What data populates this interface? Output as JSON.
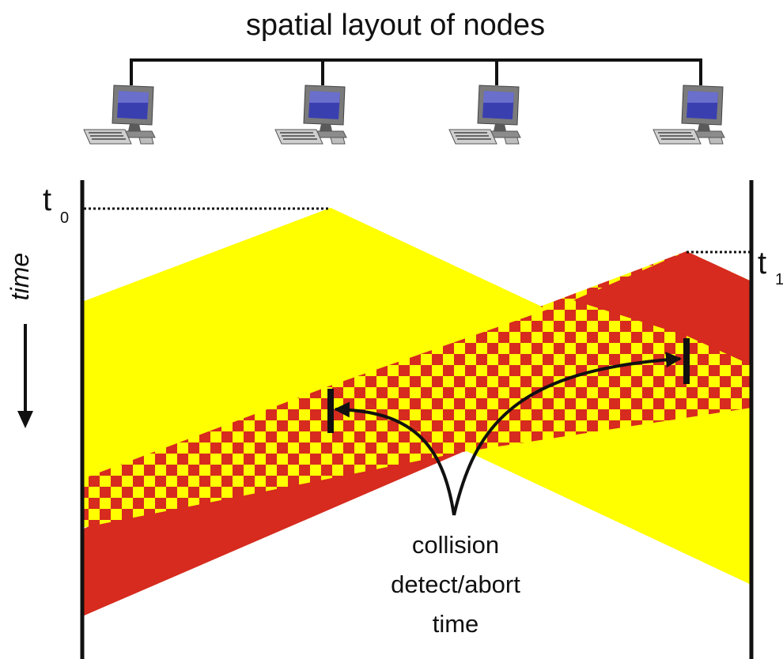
{
  "title": "spatial layout of nodes",
  "time_axis_label": "time",
  "events": [
    {
      "name": "t",
      "sub": "0"
    },
    {
      "name": "t",
      "sub": "1"
    }
  ],
  "annotation": {
    "lines": [
      "collision",
      "detect/abort",
      "time"
    ]
  },
  "nodes": [
    {
      "icon": "computer-icon"
    },
    {
      "icon": "computer-icon"
    },
    {
      "icon": "computer-icon"
    },
    {
      "icon": "computer-icon"
    }
  ],
  "colors": {
    "node_a_signal": "#ffff00",
    "node_b_signal": "#d62b1e",
    "line": "#111111"
  }
}
